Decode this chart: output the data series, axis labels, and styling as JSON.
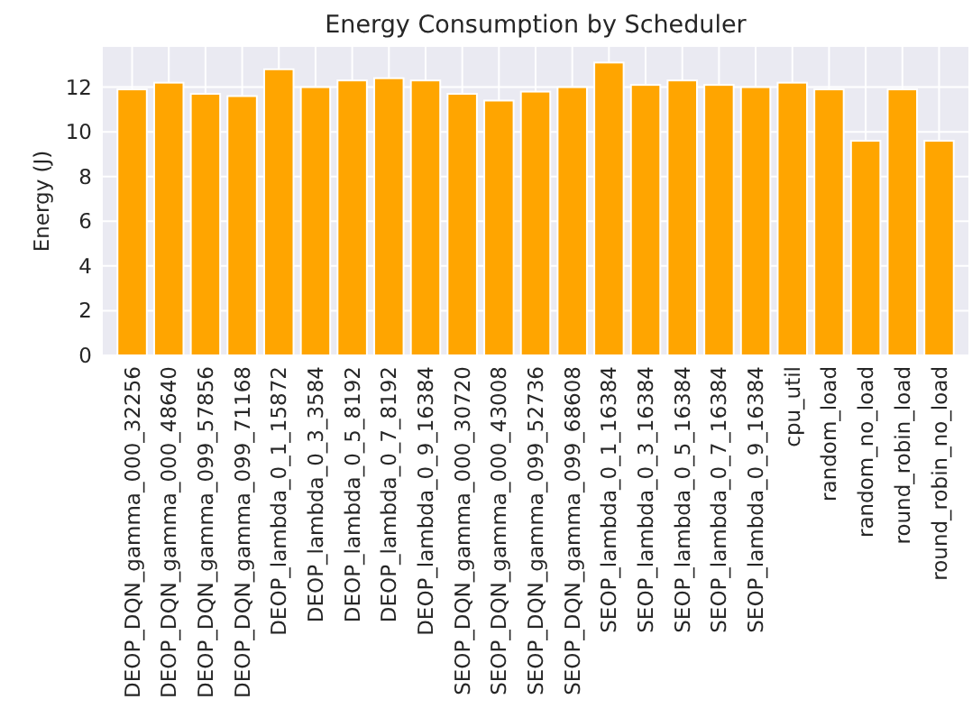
{
  "chart_data": {
    "type": "bar",
    "title": "Energy Consumption by Scheduler",
    "ylabel": "Energy (J)",
    "categories": [
      "DEOP_DQN_gamma_000_32256",
      "DEOP_DQN_gamma_000_48640",
      "DEOP_DQN_gamma_099_57856",
      "DEOP_DQN_gamma_099_71168",
      "DEOP_lambda_0_1_15872",
      "DEOP_lambda_0_3_3584",
      "DEOP_lambda_0_5_8192",
      "DEOP_lambda_0_7_8192",
      "DEOP_lambda_0_9_16384",
      "SEOP_DQN_gamma_000_30720",
      "SEOP_DQN_gamma_000_43008",
      "SEOP_DQN_gamma_099_52736",
      "SEOP_DQN_gamma_099_68608",
      "SEOP_lambda_0_1_16384",
      "SEOP_lambda_0_3_16384",
      "SEOP_lambda_0_5_16384",
      "SEOP_lambda_0_7_16384",
      "SEOP_lambda_0_9_16384",
      "cpu_util",
      "random_load",
      "random_no_load",
      "round_robin_load",
      "round_robin_no_load"
    ],
    "values": [
      11.9,
      12.2,
      11.7,
      11.6,
      12.8,
      12.0,
      12.3,
      12.4,
      12.3,
      11.7,
      11.4,
      11.8,
      12.0,
      13.1,
      12.1,
      12.3,
      12.1,
      12.0,
      12.2,
      11.9,
      9.6,
      11.9,
      9.6
    ],
    "color": "#ffa500",
    "ylim": [
      0,
      13.8
    ],
    "yticks": [
      0,
      2,
      4,
      6,
      8,
      10,
      12
    ],
    "grid": true
  }
}
